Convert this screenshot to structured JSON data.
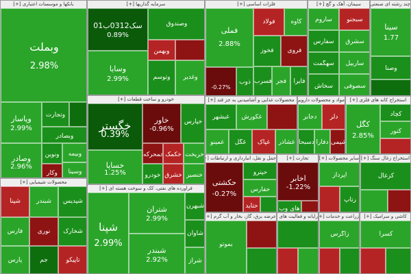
{
  "colors": {
    "g1": "#2aa52a",
    "g2": "#1b8f1b",
    "g3": "#0e6e0e",
    "g4": "#0a5a0a",
    "g5": "#3cbd3c",
    "r1": "#b52424",
    "r2": "#8e1414",
    "r3": "#6b0c0c",
    "gray": "#dadada"
  },
  "sectors": [
    {
      "id": "banks",
      "title": "بانکها و موسسات اعتباری [+]",
      "cells": [
        {
          "sym": "وبملت",
          "pct": "2.98%",
          "c": "g1",
          "size": "big"
        },
        {
          "sym": "وپاسار",
          "pct": "2.99%",
          "c": "g1"
        },
        {
          "sym": "وتجارت",
          "pct": "",
          "c": "g2"
        },
        {
          "sym": "وصادر",
          "pct": "2.96%",
          "c": "g1"
        },
        {
          "sym": "",
          "pct": "",
          "c": "g3"
        },
        {
          "sym": "وبصادر",
          "pct": "",
          "c": "g2"
        },
        {
          "sym": "ونوین",
          "pct": "",
          "c": "g2"
        },
        {
          "sym": "وکار",
          "pct": "",
          "c": "r2"
        },
        {
          "sym": "وبیمه",
          "pct": "",
          "c": "g1"
        },
        {
          "sym": "وسینا",
          "pct": "",
          "c": "g1"
        }
      ]
    },
    {
      "id": "invest",
      "title": "سرمایه گذاریها [+]",
      "cells": [
        {
          "sym": "سک0312ب01",
          "pct": "0.89%",
          "c": "g4",
          "size": "mid"
        },
        {
          "sym": "وسایا",
          "pct": "2.99%",
          "c": "g1",
          "size": "mid"
        },
        {
          "sym": "وبهمن",
          "pct": "",
          "c": "r1"
        },
        {
          "sym": "وتوسم",
          "pct": "",
          "c": "g2"
        },
        {
          "sym": "",
          "pct": "",
          "c": "r2"
        },
        {
          "sym": "وغدیر",
          "pct": "",
          "c": "g1"
        },
        {
          "sym": "وصندوق",
          "pct": "",
          "c": "g2"
        }
      ]
    },
    {
      "id": "metals",
      "title": "فلزات اساسی [+]",
      "cells": [
        {
          "sym": "فملی",
          "pct": "2.88%",
          "c": "g1",
          "size": "mid"
        },
        {
          "sym": "فولاد",
          "pct": "",
          "c": "r1"
        },
        {
          "sym": "فخوز",
          "pct": "",
          "c": "g2"
        },
        {
          "sym": "",
          "pct": "-0.27%",
          "c": "r3"
        },
        {
          "sym": "فسرب",
          "pct": "",
          "c": "g2"
        },
        {
          "sym": "کاوه",
          "pct": "",
          "c": "g1"
        },
        {
          "sym": "فروی",
          "pct": "",
          "c": "r2"
        },
        {
          "sym": "ذوب",
          "pct": "",
          "c": "g2"
        },
        {
          "sym": "فجر",
          "pct": "",
          "c": "g1"
        },
        {
          "sym": "فایرا",
          "pct": "",
          "c": "g2"
        }
      ]
    },
    {
      "id": "cement",
      "title": "سیمان، آهک و گچ [+]",
      "cells": [
        {
          "sym": "ساروم",
          "pct": "",
          "c": "g1"
        },
        {
          "sym": "سبجنو",
          "pct": "",
          "c": "r1"
        },
        {
          "sym": "سفارس",
          "pct": "",
          "c": "g2"
        },
        {
          "sym": "سشرق",
          "pct": "",
          "c": "g1"
        },
        {
          "sym": "سهگمت",
          "pct": "",
          "c": "g2"
        },
        {
          "sym": "ساربیل",
          "pct": "",
          "c": "g1"
        },
        {
          "sym": "سخاش",
          "pct": "",
          "c": "g2"
        },
        {
          "sym": "سصوفی",
          "pct": "",
          "c": "g1"
        }
      ]
    },
    {
      "id": "multi",
      "title": "چند رشته ای صنعتی [+]",
      "cells": [
        {
          "sym": "سینا",
          "pct": "1.77",
          "c": "g1",
          "size": "mid"
        },
        {
          "sym": "وصنا",
          "pct": "",
          "c": "g2"
        },
        {
          "sym": "",
          "pct": "",
          "c": "g3"
        }
      ]
    },
    {
      "id": "auto",
      "title": "خودرو و ساخت قطعات [+]",
      "cells": [
        {
          "sym": "خگستر",
          "pct": "0.39%",
          "c": "g4",
          "size": "big"
        },
        {
          "sym": "خساپا",
          "pct": "1.25%",
          "c": "g1",
          "size": "mid"
        },
        {
          "sym": "خاور",
          "pct": "-0.96%",
          "c": "r3",
          "size": "mid"
        },
        {
          "sym": "خمحرکه",
          "pct": "",
          "c": "r2"
        },
        {
          "sym": "خپارس",
          "pct": "",
          "c": "g2"
        },
        {
          "sym": "خکمک",
          "pct": "",
          "c": "r1"
        },
        {
          "sym": "خریخت",
          "pct": "",
          "c": "g1"
        },
        {
          "sym": "خودرو",
          "pct": "",
          "c": "g2"
        },
        {
          "sym": "خشرق",
          "pct": "",
          "c": "r1"
        },
        {
          "sym": "خنصیر",
          "pct": "",
          "c": "g1"
        }
      ]
    },
    {
      "id": "food",
      "title": "محصولات غذایی و آشامیدنی به جز قند [+]",
      "cells": [
        {
          "sym": "غبشهر",
          "pct": "",
          "c": "g2"
        },
        {
          "sym": "غکورش",
          "pct": "",
          "c": "g1"
        },
        {
          "sym": "",
          "pct": "",
          "c": "r2"
        },
        {
          "sym": "غمینو",
          "pct": "",
          "c": "g1"
        },
        {
          "sym": "غگل",
          "pct": "",
          "c": "g2"
        },
        {
          "sym": "غپاک",
          "pct": "",
          "c": "r1"
        },
        {
          "sym": "غشاذر",
          "pct": "",
          "c": "g1"
        }
      ]
    },
    {
      "id": "chemical",
      "title": "مواد و محصولات دارویی [+]",
      "cells": [
        {
          "sym": "دجابر",
          "pct": "",
          "c": "g1"
        },
        {
          "sym": "دلر",
          "pct": "",
          "c": "r1"
        },
        {
          "sym": "دسبحا",
          "pct": "",
          "c": "g2"
        },
        {
          "sym": "دفارا",
          "pct": "",
          "c": "g1"
        },
        {
          "sym": "دشیمی",
          "pct": "",
          "c": "r2"
        }
      ]
    },
    {
      "id": "products",
      "title": "محصولات شیمیایی [+]",
      "cells": [
        {
          "sym": "شپنا",
          "pct": "",
          "c": "r1"
        },
        {
          "sym": "شبندر",
          "pct": "",
          "c": "g1"
        },
        {
          "sym": "شپدیس",
          "pct": "",
          "c": "g2"
        },
        {
          "sym": "فارس",
          "pct": "",
          "c": "g1"
        },
        {
          "sym": "نوری",
          "pct": "",
          "c": "r2"
        },
        {
          "sym": "شخارک",
          "pct": "",
          "c": "g2"
        },
        {
          "sym": "پارس",
          "pct": "",
          "c": "g1"
        },
        {
          "sym": "جم",
          "pct": "",
          "c": "g3"
        },
        {
          "sym": "تاپیکو",
          "pct": "",
          "c": "r1"
        }
      ]
    },
    {
      "id": "refinery",
      "title": "فراورده های نفتی، کک و سوخت هسته ای [+]",
      "cells": [
        {
          "sym": "شتران",
          "pct": "2.99%",
          "c": "g1",
          "size": "mid"
        },
        {
          "sym": "شپنا",
          "pct": "2.99%",
          "c": "g1",
          "size": "big"
        },
        {
          "sym": "شبندر",
          "pct": "2.92%",
          "c": "g1",
          "size": "mid"
        },
        {
          "sym": "شبهرن",
          "pct": "",
          "c": "g2"
        },
        {
          "sym": "شاوان",
          "pct": "",
          "c": "g2"
        },
        {
          "sym": "شراز",
          "pct": "",
          "c": "g1"
        }
      ]
    },
    {
      "id": "transport",
      "title": "حمل و نقل، انبارداری و ارتباطات [+]",
      "cells": [
        {
          "sym": "حکشتی",
          "pct": "-0.27%",
          "c": "r3",
          "size": "mid"
        },
        {
          "sym": "حپترو",
          "pct": "",
          "c": "g2"
        },
        {
          "sym": "حفارس",
          "pct": "",
          "c": "g1"
        },
        {
          "sym": "حتاید",
          "pct": "",
          "c": "r1"
        },
        {
          "sym": "",
          "pct": "",
          "c": "g2"
        }
      ]
    },
    {
      "id": "trade",
      "title": "تجارت [+]",
      "cells": [
        {
          "sym": "اخابر",
          "pct": "-1.22%",
          "c": "r3",
          "size": "mid"
        },
        {
          "sym": "های وب",
          "pct": "",
          "c": "g2"
        },
        {
          "sym": "",
          "pct": "",
          "c": "r2"
        }
      ]
    },
    {
      "id": "misc1",
      "title": "سایر محصولات [+]",
      "cells": [
        {
          "sym": "اپرداز",
          "pct": "",
          "c": "g1"
        },
        {
          "sym": "",
          "pct": "",
          "c": "r1"
        },
        {
          "sym": "رتاپ",
          "pct": "",
          "c": "g2"
        }
      ]
    },
    {
      "id": "electrical",
      "title": "استخراج کانه های فلزی [+]",
      "cells": [
        {
          "sym": "کگل",
          "pct": "2.85%",
          "c": "g1",
          "size": "mid"
        },
        {
          "sym": "کچاد",
          "pct": "",
          "c": "g2"
        },
        {
          "sym": "کنور",
          "pct": "",
          "c": "g1"
        },
        {
          "sym": "",
          "pct": "",
          "c": "r1"
        }
      ]
    },
    {
      "id": "power",
      "title": "عرضه برق، گاز، بخار و آب گرم [+]",
      "cells": [
        {
          "sym": "بموتو",
          "pct": "",
          "c": "g1"
        },
        {
          "sym": "",
          "pct": "",
          "c": "r2"
        },
        {
          "sym": "",
          "pct": "",
          "c": "g2"
        }
      ]
    },
    {
      "id": "it",
      "title": "رایانه و فعالیت های وابسته [+]",
      "cells": [
        {
          "sym": "",
          "pct": "",
          "c": "g2"
        },
        {
          "sym": "",
          "pct": "",
          "c": "r1"
        },
        {
          "sym": "",
          "pct": "",
          "c": "g1"
        }
      ]
    },
    {
      "id": "mining",
      "title": "استخراج زغال سنگ [+]",
      "cells": [
        {
          "sym": "کزغال",
          "pct": "",
          "c": "g2"
        },
        {
          "sym": "",
          "pct": "",
          "c": "g1"
        },
        {
          "sym": "",
          "pct": "",
          "c": "r2"
        }
      ]
    },
    {
      "id": "misc2",
      "title": "زراعت و خدمات [+]",
      "cells": [
        {
          "sym": "زاگرس",
          "pct": "",
          "c": "g1"
        },
        {
          "sym": "",
          "pct": "",
          "c": "r1"
        },
        {
          "sym": "",
          "pct": "",
          "c": "g2"
        }
      ]
    },
    {
      "id": "misc3",
      "title": "کاشی و سرامیک [+]",
      "cells": [
        {
          "sym": "کسرا",
          "pct": "",
          "c": "g1"
        },
        {
          "sym": "",
          "pct": "",
          "c": "r1"
        },
        {
          "sym": "",
          "pct": "",
          "c": "g2"
        }
      ]
    }
  ]
}
